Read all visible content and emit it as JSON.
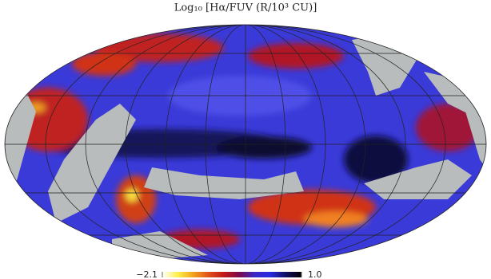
{
  "title": "Log₁₀ [Hα/FUV (R/10³ CU)]",
  "colorbar": {
    "min": {
      "value": -2.1,
      "label": "−2.1"
    },
    "max": {
      "value": 1,
      "label": "1.0"
    },
    "colormap": [
      "#ffffff",
      "#fff04a",
      "#f2a21c",
      "#e0501a",
      "#c01818",
      "#7a0a50",
      "#3a28c8",
      "#2a2ae0",
      "#101060",
      "#000000"
    ]
  }
}
